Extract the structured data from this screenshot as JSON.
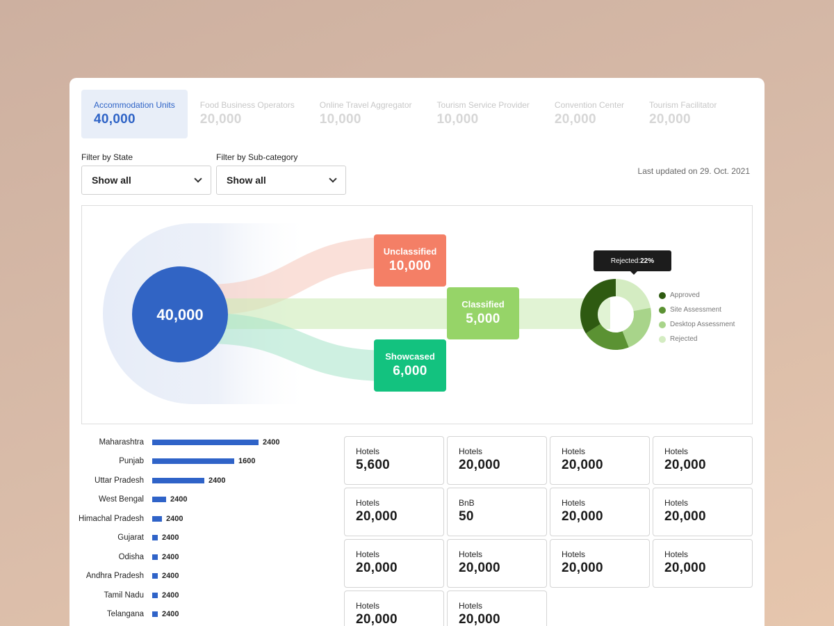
{
  "tabs": [
    {
      "label": "Accommodation Units",
      "value": "40,000",
      "active": true
    },
    {
      "label": "Food Business Operators",
      "value": "20,000"
    },
    {
      "label": "Online Travel Aggregator",
      "value": "10,000"
    },
    {
      "label": "Tourism Service Provider",
      "value": "10,000"
    },
    {
      "label": "Convention Center",
      "value": "20,000"
    },
    {
      "label": "Tourism Facilitator",
      "value": "20,000"
    }
  ],
  "filters": {
    "state": {
      "label": "Filter by State",
      "value": "Show all"
    },
    "subcategory": {
      "label": "Filter by Sub-category",
      "value": "Show all"
    }
  },
  "last_updated": "Last updated on 29. Oct. 2021",
  "flow": {
    "total": "40,000",
    "unclassified": {
      "label": "Unclassified",
      "value": "10,000",
      "color": "#f47f66"
    },
    "classified": {
      "label": "Classified",
      "value": "5,000",
      "color": "#96d468"
    },
    "showcased": {
      "label": "Showcased",
      "value": "6,000",
      "color": "#13c27f"
    },
    "total_color": "#3164c4"
  },
  "donut": {
    "tooltip_prefix": "Rejected: ",
    "tooltip_value": "22%",
    "segments": [
      {
        "name": "Approved",
        "fraction": 0.34,
        "color": "#2e5a11"
      },
      {
        "name": "Site Assessment",
        "fraction": 0.22,
        "color": "#5b9233"
      },
      {
        "name": "Desktop Assessment",
        "fraction": 0.22,
        "color": "#a8d48a"
      },
      {
        "name": "Rejected",
        "fraction": 0.22,
        "color": "#d4ecc2"
      }
    ]
  },
  "states": [
    {
      "name": "Maharashtra",
      "value": "2400",
      "fraction": 1.0
    },
    {
      "name": "Punjab",
      "value": "1600",
      "fraction": 0.77
    },
    {
      "name": "Uttar Pradesh",
      "value": "2400",
      "fraction": 0.49
    },
    {
      "name": "West Bengal",
      "value": "2400",
      "fraction": 0.13
    },
    {
      "name": "Himachal Pradesh",
      "value": "2400",
      "fraction": 0.09
    },
    {
      "name": "Gujarat",
      "value": "2400",
      "fraction": 0.05
    },
    {
      "name": "Odisha",
      "value": "2400",
      "fraction": 0.05
    },
    {
      "name": "Andhra Pradesh",
      "value": "2400",
      "fraction": 0.05
    },
    {
      "name": "Tamil Nadu",
      "value": "2400",
      "fraction": 0.05
    },
    {
      "name": "Telangana",
      "value": "2400",
      "fraction": 0.05
    }
  ],
  "stats": [
    {
      "label": "Hotels",
      "value": "5,600"
    },
    {
      "label": "Hotels",
      "value": "20,000"
    },
    {
      "label": "Hotels",
      "value": "20,000"
    },
    {
      "label": "Hotels",
      "value": "20,000"
    },
    {
      "label": "Hotels",
      "value": "20,000"
    },
    {
      "label": "BnB",
      "value": "50"
    },
    {
      "label": "Hotels",
      "value": "20,000"
    },
    {
      "label": "Hotels",
      "value": "20,000"
    },
    {
      "label": "Hotels",
      "value": "20,000"
    },
    {
      "label": "Hotels",
      "value": "20,000"
    },
    {
      "label": "Hotels",
      "value": "20,000"
    },
    {
      "label": "Hotels",
      "value": "20,000"
    },
    {
      "label": "Hotels",
      "value": "20,000"
    },
    {
      "label": "Hotels",
      "value": "20,000"
    }
  ]
}
